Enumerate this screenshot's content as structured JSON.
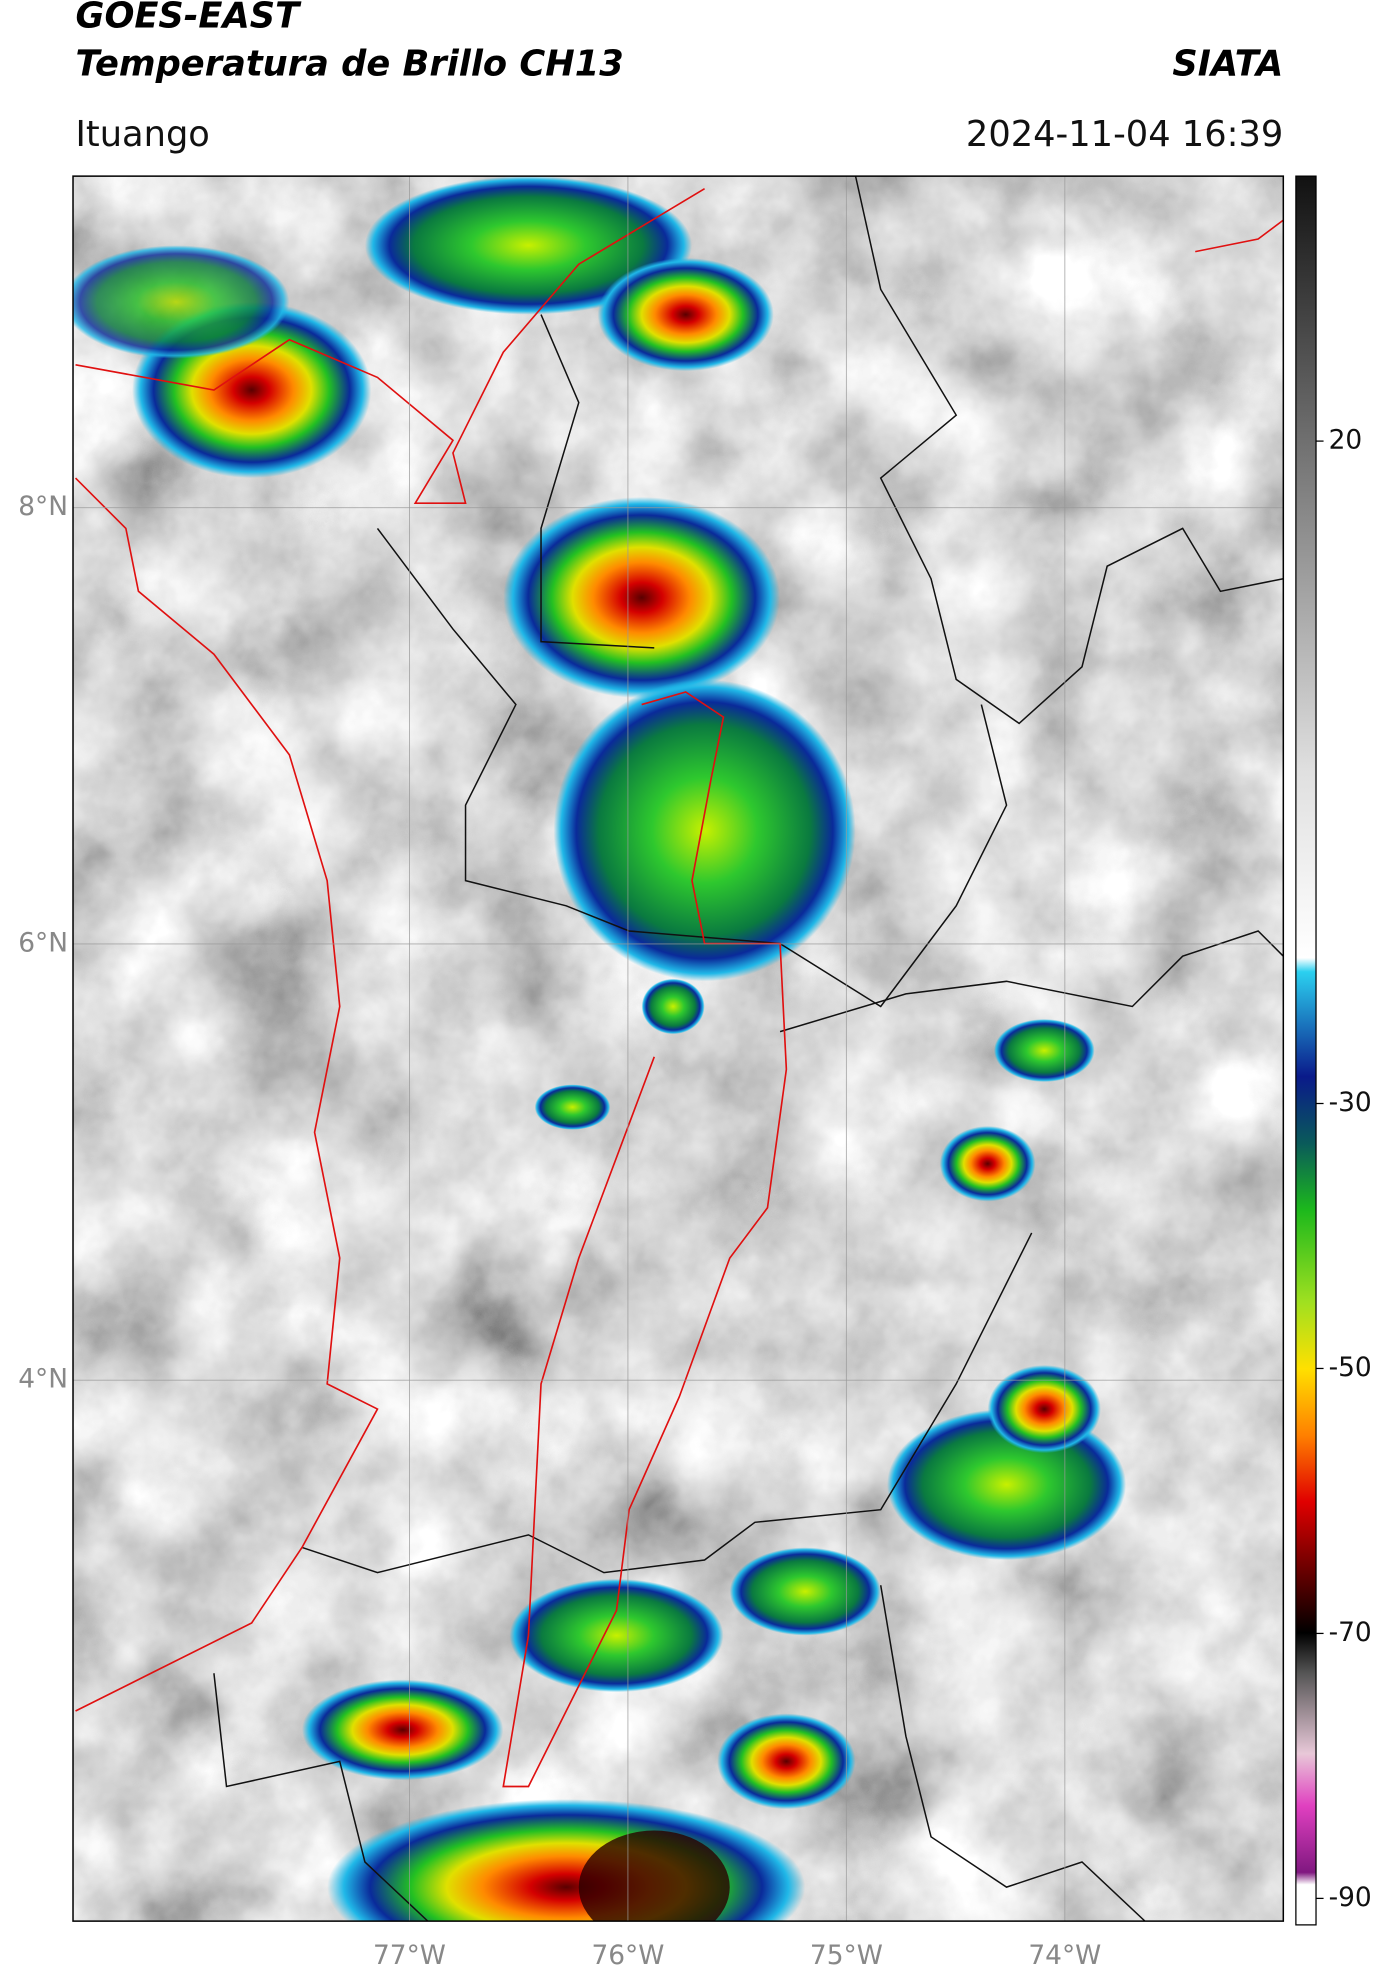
{
  "header": {
    "title": "GOES-EAST",
    "subtitle": "Temperatura de Brillo CH13",
    "agency": "SIATA",
    "location": "Ituango",
    "timestamp": "2024-11-04 16:39"
  },
  "map": {
    "lon_range": [
      -78.54,
      -73.0
    ],
    "lat_range": [
      1.52,
      9.52
    ],
    "lat_ticks": [
      {
        "value": 8,
        "label": "8°N"
      },
      {
        "value": 6,
        "label": "6°N"
      },
      {
        "value": 4,
        "label": "4°N"
      }
    ],
    "lon_ticks": [
      {
        "value": -77,
        "label": "77°W"
      },
      {
        "value": -76,
        "label": "76°W"
      },
      {
        "value": -75,
        "label": "75°W"
      },
      {
        "value": -74,
        "label": "74°W"
      }
    ],
    "grid": true
  },
  "colorbar": {
    "range": [
      -92,
      40
    ],
    "ticks": [
      20,
      -30,
      -50,
      -70,
      -90
    ]
  }
}
